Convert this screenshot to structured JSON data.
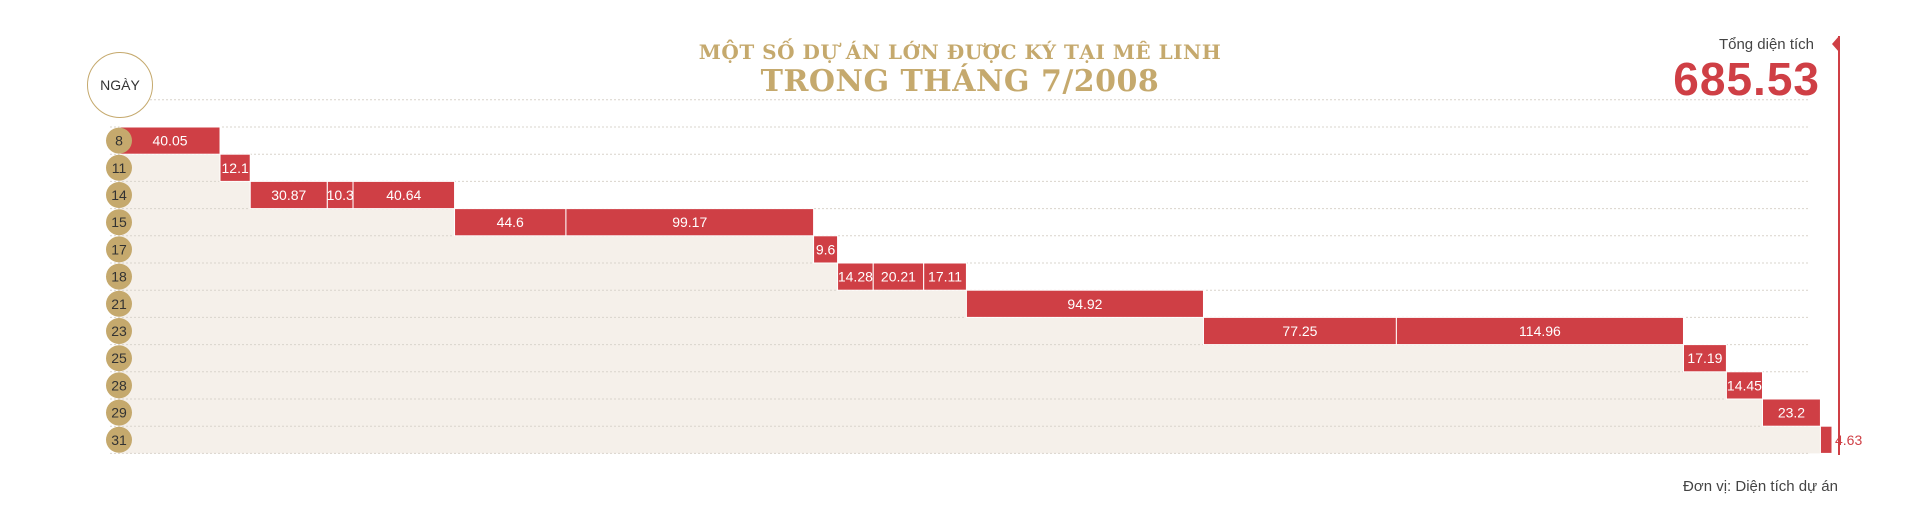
{
  "header": {
    "title_line1": "MỘT SỐ DỰ ÁN LỚN ĐƯỢC KÝ TẠI MÊ LINH",
    "title_line2": "TRONG THÁNG 7/2008"
  },
  "total": {
    "label": "Tổng diện tích",
    "value": "685.53"
  },
  "axis": {
    "day_header": "NGÀY"
  },
  "footer": {
    "unit": "Đơn vị: Diện tích dự án"
  },
  "colors": {
    "bar": "#cf3f45",
    "gold": "#c5a96d",
    "band": "#f5f0ea"
  },
  "chart_data": {
    "type": "bar",
    "title": "MỘT SỐ DỰ ÁN LỚN ĐƯỢC KÝ TẠI MÊ LINH TRONG THÁNG 7/2008",
    "xlabel": "",
    "ylabel": "NGÀY",
    "total": 685.53,
    "rows": [
      {
        "day": "8",
        "values": [
          40.05
        ]
      },
      {
        "day": "11",
        "values": [
          12.1
        ]
      },
      {
        "day": "14",
        "values": [
          30.87,
          10.3,
          40.64
        ]
      },
      {
        "day": "15",
        "values": [
          44.6,
          99.17
        ]
      },
      {
        "day": "17",
        "values": [
          9.6
        ]
      },
      {
        "day": "18",
        "values": [
          14.28,
          20.21,
          17.11
        ]
      },
      {
        "day": "21",
        "values": [
          94.92
        ]
      },
      {
        "day": "23",
        "values": [
          77.25,
          114.96
        ]
      },
      {
        "day": "25",
        "values": [
          17.19
        ]
      },
      {
        "day": "28",
        "values": [
          14.45
        ]
      },
      {
        "day": "29",
        "values": [
          23.2
        ]
      },
      {
        "day": "31",
        "values": [
          4.63
        ]
      }
    ]
  }
}
